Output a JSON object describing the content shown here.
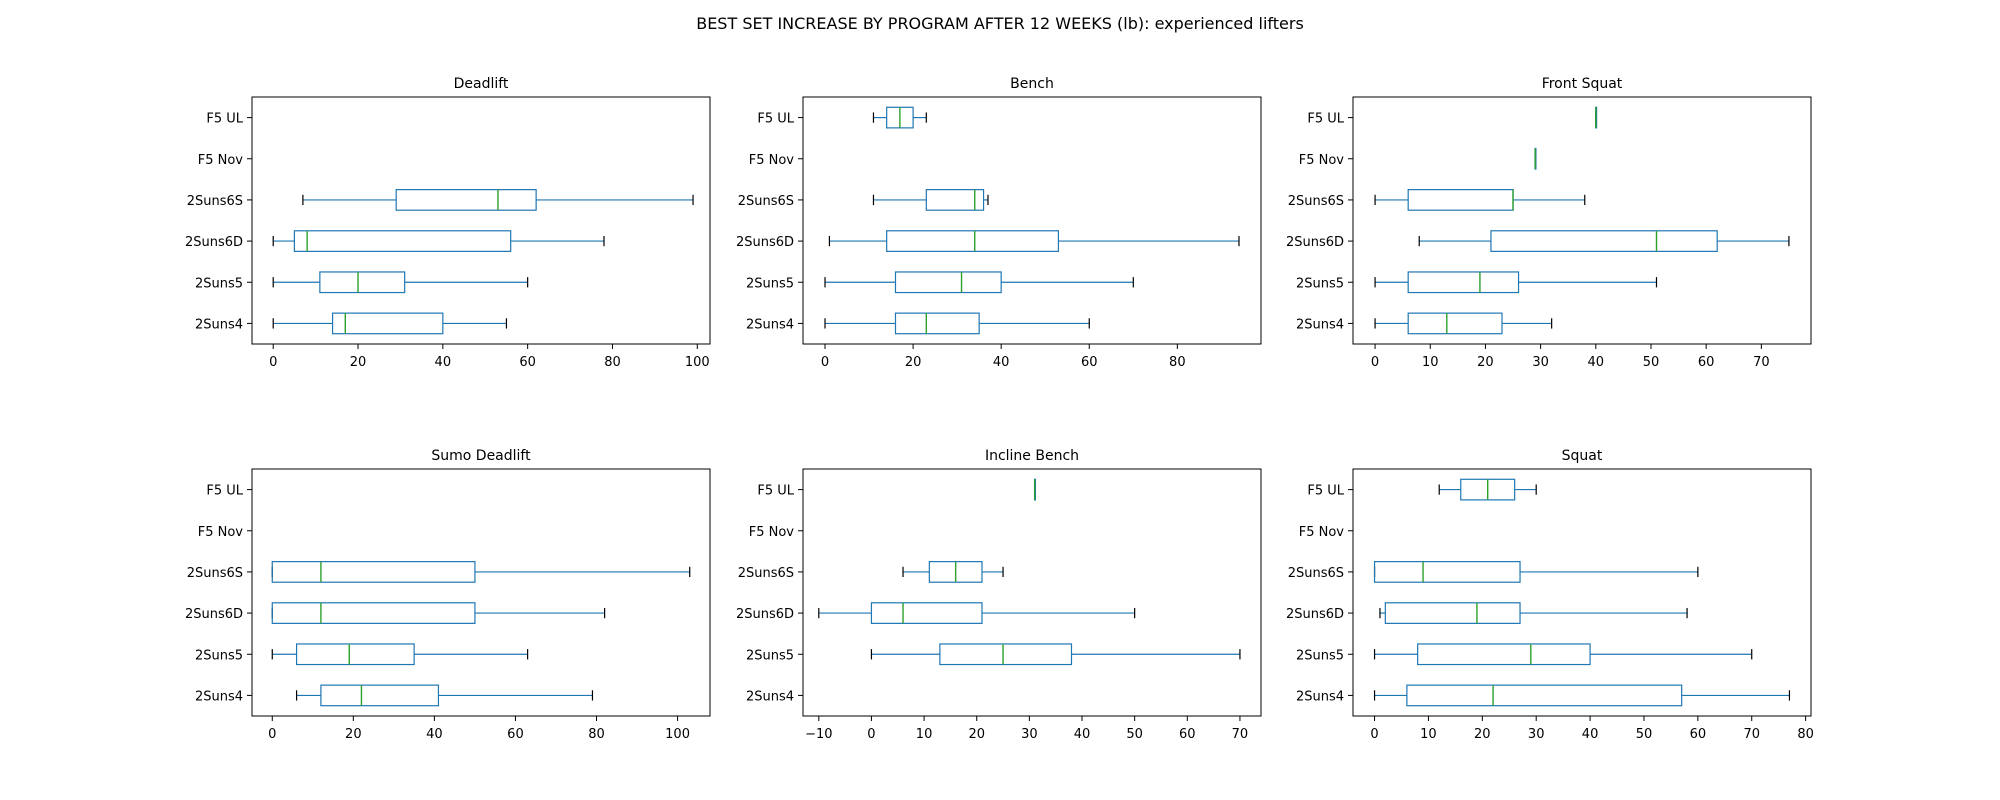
{
  "figure_title": "BEST SET INCREASE BY PROGRAM AFTER 12 WEEKS (lb): experienced lifters",
  "colors": {
    "box": "#1f77b4",
    "median": "#2ca02c",
    "axes": "#000000",
    "background": "#ffffff"
  },
  "chart_data": [
    {
      "type": "boxplot",
      "orientation": "horizontal",
      "title": "Deadlift",
      "categories": [
        "2Suns4",
        "2Suns5",
        "2Suns6D",
        "2Suns6S",
        "F5 Nov",
        "F5 UL"
      ],
      "xlim": [
        -5,
        103
      ],
      "xticks": [
        0,
        20,
        40,
        60,
        80,
        100
      ],
      "boxes": [
        {
          "label": "2Suns4",
          "whislo": 0,
          "q1": 14,
          "med": 17,
          "q3": 40,
          "whishi": 55
        },
        {
          "label": "2Suns5",
          "whislo": 0,
          "q1": 11,
          "med": 20,
          "q3": 31,
          "whishi": 60
        },
        {
          "label": "2Suns6D",
          "whislo": 0,
          "q1": 5,
          "med": 8,
          "q3": 56,
          "whishi": 78
        },
        {
          "label": "2Suns6S",
          "whislo": 7,
          "q1": 29,
          "med": 53,
          "q3": 62,
          "whishi": 99
        },
        {
          "label": "F5 Nov",
          "empty": true
        },
        {
          "label": "F5 UL",
          "empty": true
        }
      ]
    },
    {
      "type": "boxplot",
      "orientation": "horizontal",
      "title": "Bench",
      "categories": [
        "2Suns4",
        "2Suns5",
        "2Suns6D",
        "2Suns6S",
        "F5 Nov",
        "F5 UL"
      ],
      "xlim": [
        -5,
        99
      ],
      "xticks": [
        0,
        20,
        40,
        60,
        80
      ],
      "boxes": [
        {
          "label": "2Suns4",
          "whislo": 0,
          "q1": 16,
          "med": 23,
          "q3": 35,
          "whishi": 60
        },
        {
          "label": "2Suns5",
          "whislo": 0,
          "q1": 16,
          "med": 31,
          "q3": 40,
          "whishi": 70
        },
        {
          "label": "2Suns6D",
          "whislo": 1,
          "q1": 14,
          "med": 34,
          "q3": 53,
          "whishi": 94
        },
        {
          "label": "2Suns6S",
          "whislo": 11,
          "q1": 23,
          "med": 34,
          "q3": 36,
          "whishi": 37
        },
        {
          "label": "F5 Nov",
          "empty": true
        },
        {
          "label": "F5 UL",
          "whislo": 11,
          "q1": 14,
          "med": 17,
          "q3": 20,
          "whishi": 23
        }
      ]
    },
    {
      "type": "boxplot",
      "orientation": "horizontal",
      "title": "Front Squat",
      "categories": [
        "2Suns4",
        "2Suns5",
        "2Suns6D",
        "2Suns6S",
        "F5 Nov",
        "F5 UL"
      ],
      "xlim": [
        -4,
        79
      ],
      "xticks": [
        0,
        10,
        20,
        30,
        40,
        50,
        60,
        70
      ],
      "boxes": [
        {
          "label": "2Suns4",
          "whislo": 0,
          "q1": 6,
          "med": 13,
          "q3": 23,
          "whishi": 32
        },
        {
          "label": "2Suns5",
          "whislo": 0,
          "q1": 6,
          "med": 19,
          "q3": 26,
          "whishi": 51
        },
        {
          "label": "2Suns6D",
          "whislo": 8,
          "q1": 21,
          "med": 51,
          "q3": 62,
          "whishi": 75
        },
        {
          "label": "2Suns6S",
          "whislo": 0,
          "q1": 6,
          "med": 25,
          "q3": 25,
          "whishi": 38
        },
        {
          "label": "F5 Nov",
          "whislo": 29,
          "q1": 29,
          "med": 29,
          "q3": 29,
          "whishi": 29
        },
        {
          "label": "F5 UL",
          "whislo": 40,
          "q1": 40,
          "med": 40,
          "q3": 40,
          "whishi": 40
        }
      ]
    },
    {
      "type": "boxplot",
      "orientation": "horizontal",
      "title": "Sumo Deadlift",
      "categories": [
        "2Suns4",
        "2Suns5",
        "2Suns6D",
        "2Suns6S",
        "F5 Nov",
        "F5 UL"
      ],
      "xlim": [
        -5,
        108
      ],
      "xticks": [
        0,
        20,
        40,
        60,
        80,
        100
      ],
      "boxes": [
        {
          "label": "2Suns4",
          "whislo": 6,
          "q1": 12,
          "med": 22,
          "q3": 41,
          "whishi": 79
        },
        {
          "label": "2Suns5",
          "whislo": 0,
          "q1": 6,
          "med": 19,
          "q3": 35,
          "whishi": 63
        },
        {
          "label": "2Suns6D",
          "whislo": 0,
          "q1": 0,
          "med": 12,
          "q3": 50,
          "whishi": 82
        },
        {
          "label": "2Suns6S",
          "whislo": 0,
          "q1": 0,
          "med": 12,
          "q3": 50,
          "whishi": 103
        },
        {
          "label": "F5 Nov",
          "empty": true
        },
        {
          "label": "F5 UL",
          "empty": true
        }
      ]
    },
    {
      "type": "boxplot",
      "orientation": "horizontal",
      "title": "Incline Bench",
      "categories": [
        "2Suns4",
        "2Suns5",
        "2Suns6D",
        "2Suns6S",
        "F5 Nov",
        "F5 UL"
      ],
      "xlim": [
        -13,
        74
      ],
      "xticks": [
        -10,
        0,
        10,
        20,
        30,
        40,
        50,
        60,
        70
      ],
      "boxes": [
        {
          "label": "2Suns4",
          "empty": true
        },
        {
          "label": "2Suns5",
          "whislo": 0,
          "q1": 13,
          "med": 25,
          "q3": 38,
          "whishi": 70
        },
        {
          "label": "2Suns6D",
          "whislo": -10,
          "q1": 0,
          "med": 6,
          "q3": 21,
          "whishi": 50
        },
        {
          "label": "2Suns6S",
          "whislo": 6,
          "q1": 11,
          "med": 16,
          "q3": 21,
          "whishi": 25
        },
        {
          "label": "F5 Nov",
          "empty": true
        },
        {
          "label": "F5 UL",
          "whislo": 31,
          "q1": 31,
          "med": 31,
          "q3": 31,
          "whishi": 31
        }
      ]
    },
    {
      "type": "boxplot",
      "orientation": "horizontal",
      "title": "Squat",
      "categories": [
        "2Suns4",
        "2Suns5",
        "2Suns6D",
        "2Suns6S",
        "F5 Nov",
        "F5 UL"
      ],
      "xlim": [
        -4,
        81
      ],
      "xticks": [
        0,
        10,
        20,
        30,
        40,
        50,
        60,
        70,
        80
      ],
      "boxes": [
        {
          "label": "2Suns4",
          "whislo": 0,
          "q1": 6,
          "med": 22,
          "q3": 57,
          "whishi": 77
        },
        {
          "label": "2Suns5",
          "whislo": 0,
          "q1": 8,
          "med": 29,
          "q3": 40,
          "whishi": 70
        },
        {
          "label": "2Suns6D",
          "whislo": 1,
          "q1": 2,
          "med": 19,
          "q3": 27,
          "whishi": 58
        },
        {
          "label": "2Suns6S",
          "whislo": 0,
          "q1": 0,
          "med": 9,
          "q3": 27,
          "whishi": 60
        },
        {
          "label": "F5 Nov",
          "empty": true
        },
        {
          "label": "F5 UL",
          "whislo": 12,
          "q1": 16,
          "med": 21,
          "q3": 26,
          "whishi": 30
        }
      ]
    }
  ]
}
